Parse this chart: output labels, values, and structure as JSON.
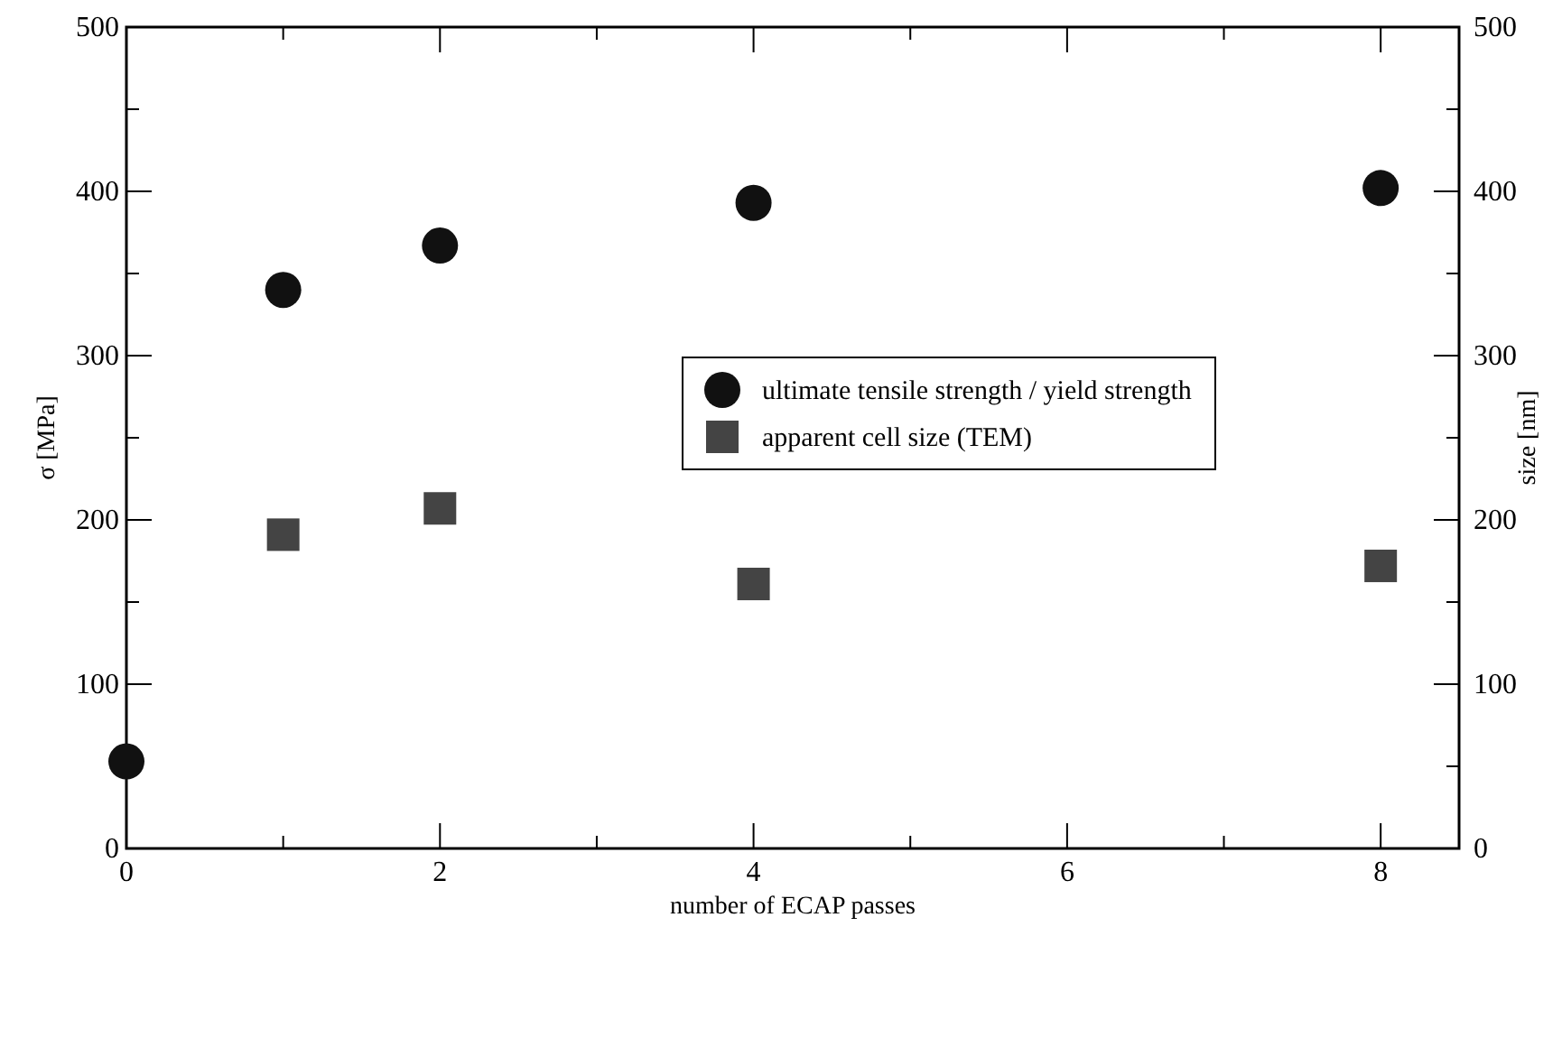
{
  "chart_data": {
    "type": "scatter",
    "xlabel": "number of ECAP passes",
    "ylabel": "σ [MPa]",
    "y2label": "size [nm]",
    "xlim": [
      0,
      8.5
    ],
    "xticks": [
      0,
      {
        "value": 1,
        "label": null
      },
      2,
      {
        "value": 3,
        "label": null
      },
      4,
      {
        "value": 5,
        "label": null
      },
      6,
      {
        "value": 7,
        "label": null
      },
      8
    ],
    "ylim": [
      0,
      500
    ],
    "yticks": [
      0,
      {
        "value": 50,
        "label": null
      },
      100,
      {
        "value": 150,
        "label": null
      },
      200,
      {
        "value": 250,
        "label": null
      },
      300,
      {
        "value": 350,
        "label": null
      },
      400,
      {
        "value": 450,
        "label": null
      },
      500
    ],
    "y2lim": [
      0,
      500
    ],
    "y2ticks": [
      0,
      {
        "value": 50,
        "label": null
      },
      100,
      {
        "value": 150,
        "label": null
      },
      200,
      {
        "value": 250,
        "label": null
      },
      300,
      {
        "value": 350,
        "label": null
      },
      400,
      {
        "value": 450,
        "label": null
      },
      500
    ],
    "legend": "right",
    "series": [
      {
        "name": "ultimate tensile strength / yield strength",
        "color": "#111111",
        "marker": "circle",
        "x": [
          0,
          1,
          2,
          4,
          8
        ],
        "values": [
          53,
          340,
          367,
          393,
          402
        ]
      },
      {
        "name": "apparent cell size (TEM)",
        "color": "#444444",
        "marker": "square",
        "axis": "y2",
        "x": [
          1,
          2,
          4,
          8
        ],
        "values": [
          191,
          207,
          161,
          172
        ]
      }
    ]
  }
}
